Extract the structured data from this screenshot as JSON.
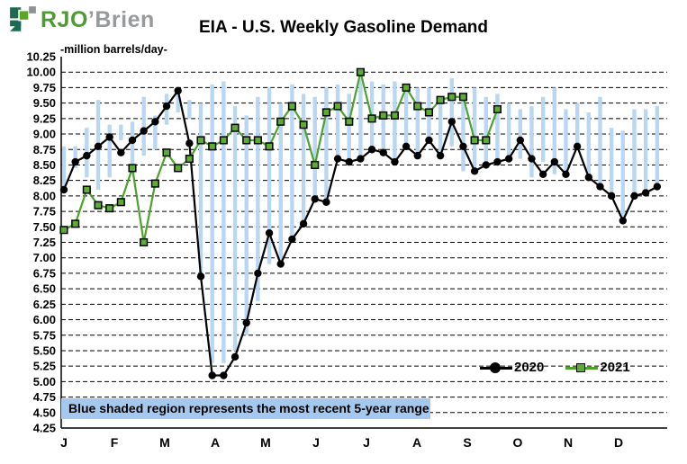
{
  "logo": {
    "text_primary": "RJO",
    "text_secondary": "’Brien"
  },
  "title": "EIA - U.S. Weekly Gasoline Demand",
  "annotation": "Blue shaded region represents the most recent 5-year range",
  "colors": {
    "range_blue": "#B9D7F2",
    "annotation_bg": "#A5C9EE",
    "series_2020": "#000000",
    "series_2021": "#4CA22B",
    "logo_dark_green": "#1B6B51",
    "logo_bright_green": "#5CA626",
    "logo_gray": "#8E9092"
  },
  "chart_data": {
    "type": "line",
    "title": "EIA - U.S. Weekly Gasoline Demand",
    "xlabel": "",
    "ylabel": "-million barrels/day-",
    "ylim": [
      4.25,
      10.25
    ],
    "ytick_step": 0.25,
    "grid": "dashed-horizontal",
    "legend_position": "inside-bottom-right",
    "x_unit": "week-of-year",
    "month_labels": [
      "J",
      "F",
      "M",
      "A",
      "M",
      "J",
      "J",
      "A",
      "S",
      "O",
      "N",
      "D"
    ],
    "y_ticks": [
      "10.25",
      "10.00",
      "9.75",
      "9.50",
      "9.25",
      "9.00",
      "8.75",
      "8.50",
      "8.25",
      "8.00",
      "7.75",
      "7.50",
      "7.25",
      "7.00",
      "6.75",
      "6.50",
      "6.25",
      "6.00",
      "5.75",
      "5.50",
      "5.25",
      "5.00",
      "4.75",
      "4.50",
      "4.25"
    ],
    "series": [
      {
        "name": "2020",
        "color": "#000000",
        "marker": "circle",
        "marker_color": "#000000",
        "values": [
          8.1,
          8.55,
          8.65,
          8.8,
          8.95,
          8.7,
          8.9,
          9.05,
          9.2,
          9.45,
          9.7,
          8.85,
          6.7,
          5.1,
          5.1,
          5.4,
          5.95,
          6.75,
          7.4,
          6.9,
          7.3,
          7.55,
          7.95,
          7.9,
          8.6,
          8.55,
          8.6,
          8.75,
          8.7,
          8.55,
          8.8,
          8.65,
          8.9,
          8.65,
          9.2,
          8.8,
          8.4,
          8.5,
          8.55,
          8.6,
          8.9,
          8.6,
          8.35,
          8.55,
          8.35,
          8.8,
          8.3,
          8.15,
          8.0,
          7.6,
          8.0,
          8.05,
          8.15
        ]
      },
      {
        "name": "2021",
        "color": "#4CA22B",
        "marker": "square",
        "marker_color": "#5BAD33",
        "values": [
          7.45,
          7.55,
          8.1,
          7.85,
          7.8,
          7.9,
          8.45,
          7.25,
          8.2,
          8.7,
          8.45,
          8.6,
          8.9,
          8.8,
          8.9,
          9.1,
          8.9,
          8.9,
          8.8,
          9.2,
          9.45,
          9.15,
          8.5,
          9.35,
          9.45,
          9.2,
          10.0,
          9.25,
          9.3,
          9.3,
          9.75,
          9.45,
          9.35,
          9.55,
          9.6,
          9.6,
          8.9,
          8.9,
          9.4
        ]
      }
    ],
    "range_band": {
      "label": "most recent 5-year range",
      "color": "#B9D7F2",
      "low": [
        8.1,
        8.45,
        8.3,
        8.1,
        8.3,
        8.9,
        8.35,
        8.65,
        8.75,
        9.15,
        9.35,
        9.25,
        6.7,
        5.3,
        5.3,
        5.5,
        5.75,
        6.3,
        6.9,
        6.9,
        7.3,
        7.5,
        7.9,
        7.9,
        8.6,
        8.55,
        8.6,
        8.75,
        8.7,
        8.55,
        8.8,
        8.65,
        8.9,
        8.65,
        8.8,
        8.4,
        8.4,
        8.55,
        8.55,
        8.6,
        8.6,
        8.3,
        8.55,
        8.35,
        8.3,
        8.8,
        8.3,
        8.2,
        7.95,
        7.65,
        7.95,
        8.05,
        8.1
      ],
      "high": [
        8.8,
        8.8,
        9.1,
        9.55,
        9.15,
        9.15,
        9.2,
        9.6,
        9.3,
        9.65,
        9.7,
        9.55,
        9.5,
        9.8,
        9.85,
        9.45,
        9.3,
        9.6,
        9.75,
        9.5,
        9.8,
        9.65,
        9.6,
        9.75,
        9.8,
        9.65,
        9.9,
        9.85,
        9.8,
        9.85,
        9.7,
        9.75,
        9.75,
        9.6,
        9.9,
        9.6,
        9.75,
        9.6,
        9.65,
        9.5,
        9.4,
        9.45,
        9.6,
        9.75,
        9.4,
        9.5,
        9.35,
        9.6,
        9.1,
        9.05,
        9.4,
        9.4,
        9.45
      ]
    }
  }
}
